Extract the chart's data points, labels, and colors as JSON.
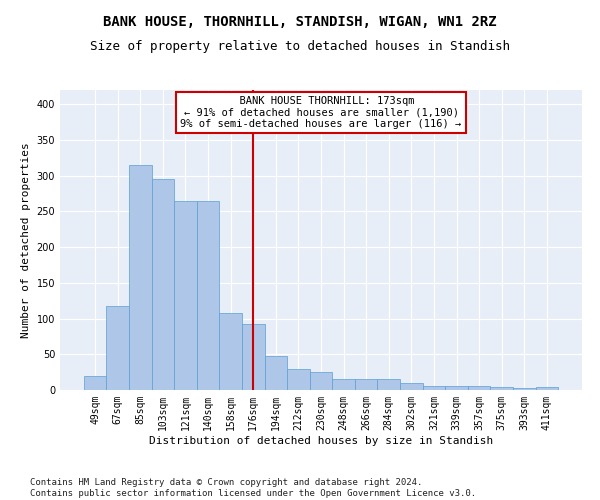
{
  "title": "BANK HOUSE, THORNHILL, STANDISH, WIGAN, WN1 2RZ",
  "subtitle": "Size of property relative to detached houses in Standish",
  "xlabel": "Distribution of detached houses by size in Standish",
  "ylabel": "Number of detached properties",
  "categories": [
    "49sqm",
    "67sqm",
    "85sqm",
    "103sqm",
    "121sqm",
    "140sqm",
    "158sqm",
    "176sqm",
    "194sqm",
    "212sqm",
    "230sqm",
    "248sqm",
    "266sqm",
    "284sqm",
    "302sqm",
    "321sqm",
    "339sqm",
    "357sqm",
    "375sqm",
    "393sqm",
    "411sqm"
  ],
  "values": [
    20,
    118,
    315,
    296,
    265,
    265,
    108,
    92,
    47,
    30,
    25,
    15,
    15,
    15,
    10,
    5,
    5,
    5,
    4,
    3,
    4
  ],
  "bar_color": "#aec6e8",
  "bar_edge_color": "#5a9fd4",
  "reference_line_x": 7,
  "annotation_text": "  BANK HOUSE THORNHILL: 173sqm\n← 91% of detached houses are smaller (1,190)\n9% of semi-detached houses are larger (116) →",
  "annotation_box_color": "#ffffff",
  "annotation_box_edge": "#cc0000",
  "ref_line_color": "#cc0000",
  "background_color": "#ffffff",
  "plot_bg_color": "#e8eef7",
  "grid_color": "#ffffff",
  "footer": "Contains HM Land Registry data © Crown copyright and database right 2024.\nContains public sector information licensed under the Open Government Licence v3.0.",
  "ylim": [
    0,
    420
  ],
  "yticks": [
    0,
    50,
    100,
    150,
    200,
    250,
    300,
    350,
    400
  ],
  "title_fontsize": 10,
  "subtitle_fontsize": 9,
  "xlabel_fontsize": 8,
  "ylabel_fontsize": 8,
  "tick_fontsize": 7,
  "footer_fontsize": 6.5,
  "ann_fontsize": 7.5
}
